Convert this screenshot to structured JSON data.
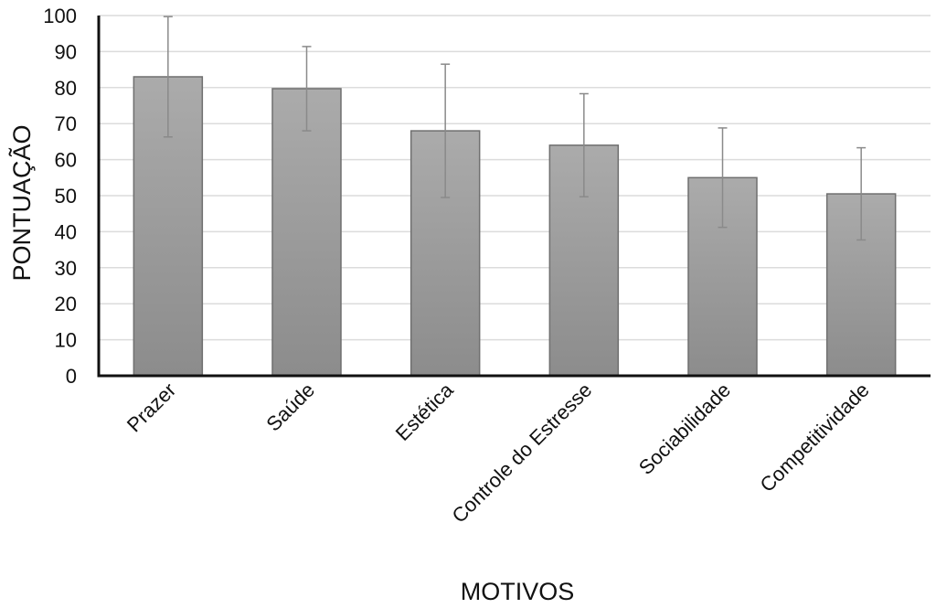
{
  "chart_data": {
    "type": "bar",
    "title": "",
    "xlabel": "MOTIVOS",
    "ylabel": "PONTUAÇÃO",
    "ylim": [
      0,
      100
    ],
    "yticks": [
      0,
      10,
      20,
      30,
      40,
      50,
      60,
      70,
      80,
      90,
      100
    ],
    "grid": true,
    "legend": "none",
    "categories": [
      "Prazer",
      "Saúde",
      "Estética",
      "Controle do Estresse",
      "Sociabilidade",
      "Competitividade"
    ],
    "values": [
      83,
      79.7,
      68,
      64,
      55,
      50.5
    ],
    "error": [
      16.7,
      11.7,
      18.5,
      14.3,
      13.8,
      12.8
    ],
    "colors": {
      "bar_top": "#ababab",
      "bar_bottom": "#8c8c8c",
      "bar_stroke": "#6f6f6f",
      "error_bar": "#8a8a8a",
      "grid": "#dcdcdc",
      "axis": "#111111"
    }
  }
}
